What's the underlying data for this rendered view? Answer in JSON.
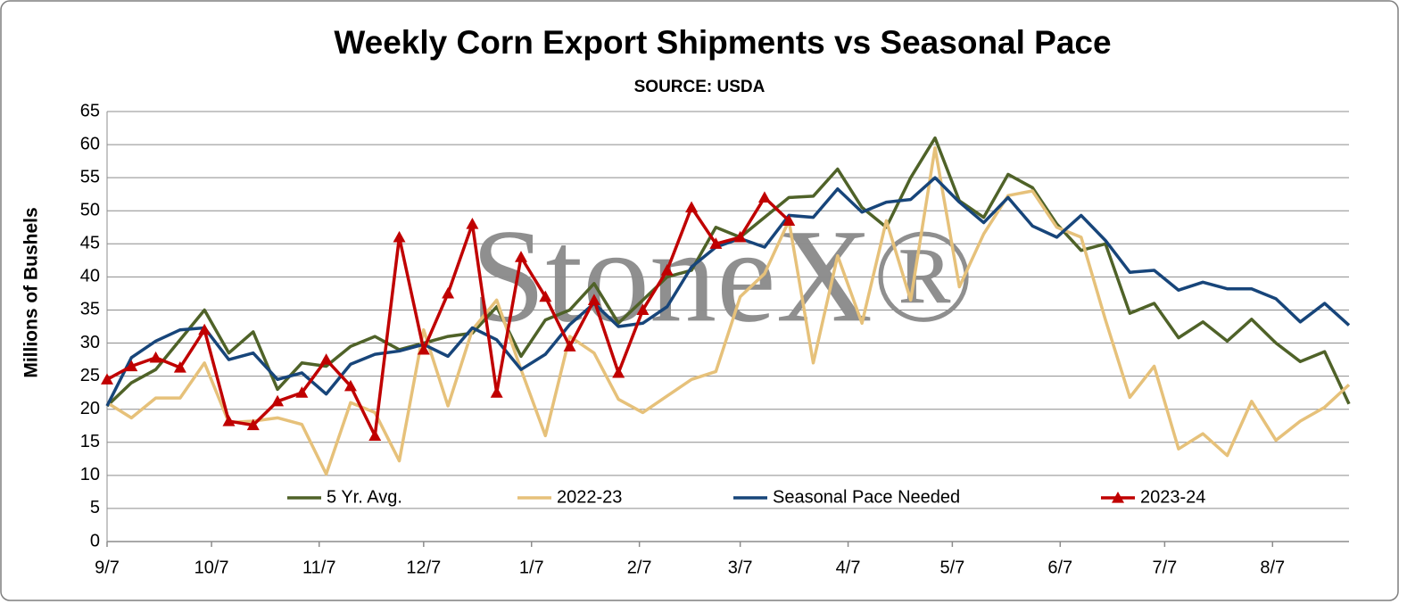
{
  "chart_data": {
    "type": "line",
    "title": "Weekly Corn Export Shipments vs Seasonal Pace",
    "subtitle": "SOURCE: USDA",
    "y_label": "Millions of Bushels",
    "watermark": "StoneX®",
    "categories": [
      null,
      null,
      null,
      null,
      null,
      null,
      null,
      null,
      null,
      null,
      null,
      null,
      null,
      null,
      null,
      null,
      null,
      null,
      null,
      null,
      null,
      null,
      null,
      null,
      null,
      null,
      null,
      null,
      null,
      null,
      null,
      null,
      null,
      null,
      null,
      null,
      null,
      null,
      null,
      null,
      null,
      null,
      null,
      null,
      null,
      null,
      null,
      null,
      null,
      null,
      null,
      null
    ],
    "xlim": [
      0,
      51
    ],
    "xticks": [
      {
        "value": 0,
        "label": "9/7"
      },
      {
        "value": 4.29,
        "label": "10/7"
      },
      {
        "value": 8.71,
        "label": "11/7"
      },
      {
        "value": 13,
        "label": "12/7"
      },
      {
        "value": 17.43,
        "label": "1/7"
      },
      {
        "value": 21.86,
        "label": "2/7"
      },
      {
        "value": 26,
        "label": "3/7"
      },
      {
        "value": 30.43,
        "label": "4/7"
      },
      {
        "value": 34.71,
        "label": "5/7"
      },
      {
        "value": 39.14,
        "label": "6/7"
      },
      {
        "value": 43.43,
        "label": "7/7"
      },
      {
        "value": 47.86,
        "label": "8/7"
      }
    ],
    "ylim": [
      0,
      65
    ],
    "yticks": [
      0,
      5,
      10,
      15,
      20,
      25,
      30,
      35,
      40,
      45,
      50,
      55,
      60,
      65
    ],
    "grid": true,
    "legend": "bottom",
    "series": [
      {
        "name": "5 Yr. Avg.",
        "color": "#4f6228",
        "marker": "none",
        "values": [
          20.5,
          24,
          26,
          30.5,
          35,
          28.5,
          31.7,
          23,
          27,
          26.5,
          29.5,
          31,
          29,
          30,
          31,
          31.5,
          35.5,
          28,
          33.5,
          35,
          39,
          33,
          36.5,
          40,
          41,
          47.5,
          46,
          49,
          52,
          52.2,
          56.3,
          50.5,
          47.5,
          55,
          61,
          51.5,
          49,
          55.5,
          53.5,
          48,
          44,
          45,
          34.5,
          36,
          30.8,
          33.2,
          30.3,
          33.6,
          30,
          27.2,
          28.7,
          20.8
        ]
      },
      {
        "name": "2022-23",
        "color": "#e6c17a",
        "marker": "none",
        "values": [
          21,
          18.7,
          21.7,
          21.7,
          27,
          18,
          18.2,
          18.7,
          17.7,
          10.2,
          21,
          19.5,
          12.2,
          32,
          20.5,
          32,
          36.5,
          26,
          16,
          31,
          28.5,
          21.5,
          19.5,
          22,
          24.5,
          25.7,
          37,
          40.5,
          48.5,
          27,
          43.2,
          33,
          48.5,
          36.5,
          59.5,
          38.5,
          46.5,
          52.3,
          53,
          47.5,
          46,
          33.5,
          21.8,
          26.5,
          14,
          16.3,
          13,
          21.2,
          15.3,
          18.2,
          20.3,
          23.7
        ]
      },
      {
        "name": "Seasonal Pace Needed",
        "color": "#17457a",
        "marker": "none",
        "values": [
          20.5,
          27.8,
          30.3,
          32,
          32.3,
          27.5,
          28.5,
          24.5,
          25.5,
          22.3,
          26.8,
          28.3,
          28.8,
          29.8,
          28,
          32.3,
          30.5,
          26,
          28.3,
          32.8,
          36,
          32.5,
          33,
          35.5,
          41.5,
          44.5,
          45.8,
          44.5,
          49.3,
          49,
          53.3,
          49.8,
          51.3,
          51.7,
          55,
          51.3,
          48.2,
          52,
          47.7,
          46,
          49.3,
          45.5,
          40.7,
          41,
          38,
          39.2,
          38.2,
          38.2,
          36.7,
          33.2,
          36,
          32.7
        ]
      },
      {
        "name": "2023-24",
        "color": "#c00000",
        "marker": "triangle",
        "values": [
          24.5,
          26.5,
          27.8,
          26.3,
          32,
          18.2,
          17.6,
          21.2,
          22.5,
          27.5,
          23.5,
          16,
          46,
          29,
          37.5,
          48,
          22.5,
          43,
          37,
          29.5,
          36.5,
          25.5,
          35,
          41,
          50.5,
          45,
          46,
          52,
          48.5,
          null,
          null,
          null,
          null,
          null,
          null,
          null,
          null,
          null,
          null,
          null,
          null,
          null,
          null,
          null,
          null,
          null,
          null,
          null,
          null,
          null,
          null,
          null
        ]
      }
    ]
  }
}
